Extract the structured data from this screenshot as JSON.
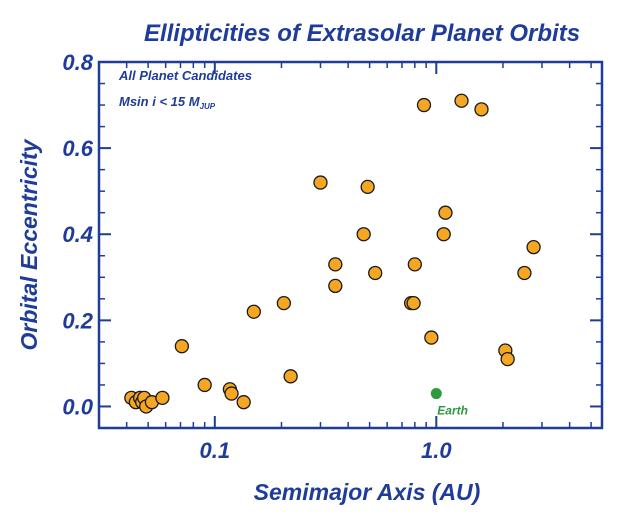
{
  "chart_data": {
    "type": "scatter",
    "title": "Ellipticities of Extrasolar Planet Orbits",
    "xlabel": "Semimajor Axis  (AU)",
    "ylabel": "Orbital Eccentricity",
    "x_scale": "log",
    "xlim": [
      0.03,
      5.6
    ],
    "ylim": [
      -0.05,
      0.8
    ],
    "x_ticks": [
      {
        "value": 0.1,
        "label": "0.1"
      },
      {
        "value": 1.0,
        "label": "1.0"
      }
    ],
    "y_ticks": [
      {
        "value": 0.0,
        "label": "0.0"
      },
      {
        "value": 0.2,
        "label": "0.2"
      },
      {
        "value": 0.4,
        "label": "0.4"
      },
      {
        "value": 0.6,
        "label": "0.6"
      },
      {
        "value": 0.8,
        "label": "0.8"
      }
    ],
    "annotations": {
      "line1": "All Planet Candidates",
      "line2_prefix": "Msin i < 15 M",
      "line2_subscript": "JUP"
    },
    "series": [
      {
        "name": "",
        "color": "#f5a623",
        "points": [
          {
            "x": 0.042,
            "y": 0.02
          },
          {
            "x": 0.044,
            "y": 0.01
          },
          {
            "x": 0.046,
            "y": 0.02
          },
          {
            "x": 0.047,
            "y": 0.01
          },
          {
            "x": 0.048,
            "y": 0.02
          },
          {
            "x": 0.049,
            "y": 0.0
          },
          {
            "x": 0.052,
            "y": 0.01
          },
          {
            "x": 0.058,
            "y": 0.02
          },
          {
            "x": 0.071,
            "y": 0.14
          },
          {
            "x": 0.09,
            "y": 0.05
          },
          {
            "x": 0.117,
            "y": 0.04
          },
          {
            "x": 0.119,
            "y": 0.03
          },
          {
            "x": 0.135,
            "y": 0.01
          },
          {
            "x": 0.15,
            "y": 0.22
          },
          {
            "x": 0.205,
            "y": 0.24
          },
          {
            "x": 0.22,
            "y": 0.07
          },
          {
            "x": 0.3,
            "y": 0.52
          },
          {
            "x": 0.35,
            "y": 0.33
          },
          {
            "x": 0.35,
            "y": 0.28
          },
          {
            "x": 0.47,
            "y": 0.4
          },
          {
            "x": 0.49,
            "y": 0.51
          },
          {
            "x": 0.53,
            "y": 0.31
          },
          {
            "x": 0.77,
            "y": 0.24
          },
          {
            "x": 0.79,
            "y": 0.24
          },
          {
            "x": 0.8,
            "y": 0.33
          },
          {
            "x": 0.88,
            "y": 0.7
          },
          {
            "x": 0.95,
            "y": 0.16
          },
          {
            "x": 1.08,
            "y": 0.4
          },
          {
            "x": 1.1,
            "y": 0.45
          },
          {
            "x": 1.3,
            "y": 0.71
          },
          {
            "x": 1.6,
            "y": 0.69
          },
          {
            "x": 2.05,
            "y": 0.13
          },
          {
            "x": 2.1,
            "y": 0.11
          },
          {
            "x": 2.5,
            "y": 0.31
          },
          {
            "x": 2.75,
            "y": 0.37
          }
        ]
      },
      {
        "name": "Earth",
        "color": "#2d9a3e",
        "points": [
          {
            "x": 1.0,
            "y": 0.03
          }
        ]
      }
    ],
    "earth_label": "Earth"
  }
}
